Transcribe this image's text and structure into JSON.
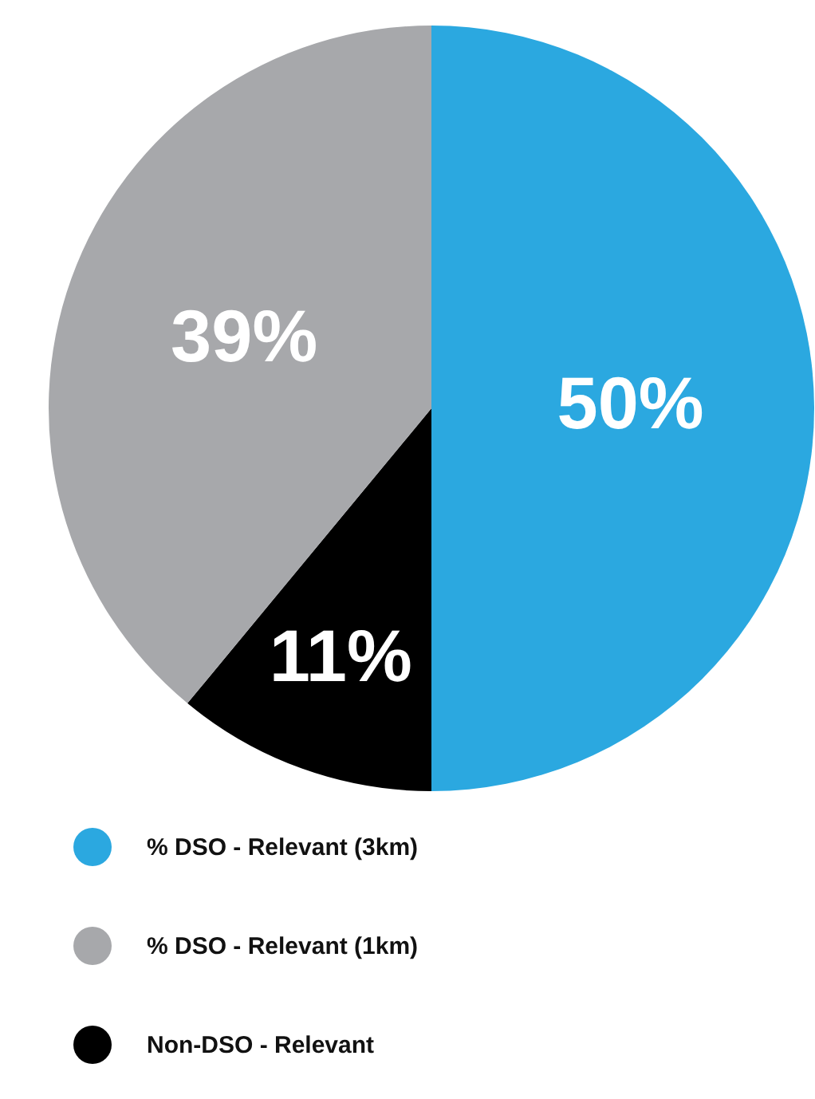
{
  "chart_data": {
    "type": "pie",
    "categories": [
      "% DSO - Relevant (3km)",
      "Non-DSO - Relevant",
      "% DSO - Relevant (1km)"
    ],
    "values": [
      50,
      11,
      39
    ],
    "colors": [
      "#2ba8e0",
      "#000000",
      "#a7a8ab"
    ],
    "value_labels": [
      "50%",
      "11%",
      "39%"
    ],
    "legend": "bottom left"
  }
}
